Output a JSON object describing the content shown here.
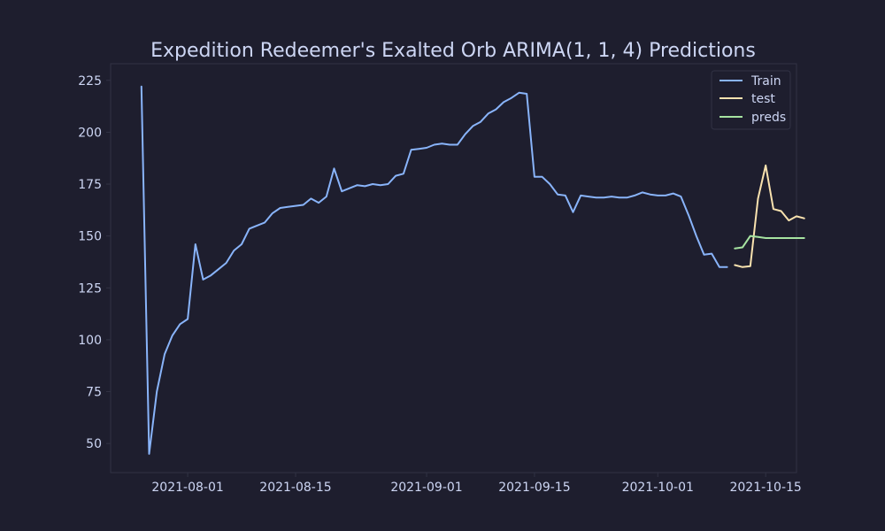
{
  "chart_data": {
    "type": "line",
    "title": "Expedition Redeemer's Exalted Orb ARIMA(1, 1, 4) Predictions",
    "xlabel": "",
    "ylabel": "",
    "x_axis_type": "date",
    "xlim": [
      "2021-07-22",
      "2021-10-19"
    ],
    "ylim": [
      36,
      233
    ],
    "x_ticks": [
      "2021-08-01",
      "2021-08-15",
      "2021-09-01",
      "2021-09-15",
      "2021-10-01",
      "2021-10-15"
    ],
    "y_ticks": [
      50,
      75,
      100,
      125,
      150,
      175,
      200,
      225
    ],
    "grid": false,
    "legend_position": "top-right",
    "series": [
      {
        "name": "Train",
        "color": "#89b4fa",
        "points": [
          [
            "2021-07-26",
            222
          ],
          [
            "2021-07-27",
            45
          ],
          [
            "2021-07-28",
            75
          ],
          [
            "2021-07-29",
            93
          ],
          [
            "2021-07-30",
            102
          ],
          [
            "2021-07-31",
            107.5
          ],
          [
            "2021-08-01",
            110
          ],
          [
            "2021-08-02",
            146
          ],
          [
            "2021-08-03",
            129
          ],
          [
            "2021-08-04",
            131
          ],
          [
            "2021-08-05",
            134
          ],
          [
            "2021-08-06",
            137
          ],
          [
            "2021-08-07",
            143
          ],
          [
            "2021-08-08",
            146
          ],
          [
            "2021-08-09",
            153.5
          ],
          [
            "2021-08-10",
            155
          ],
          [
            "2021-08-11",
            156.5
          ],
          [
            "2021-08-12",
            161
          ],
          [
            "2021-08-13",
            163.5
          ],
          [
            "2021-08-14",
            164
          ],
          [
            "2021-08-15",
            164.5
          ],
          [
            "2021-08-16",
            165
          ],
          [
            "2021-08-17",
            168
          ],
          [
            "2021-08-18",
            166
          ],
          [
            "2021-08-19",
            169
          ],
          [
            "2021-08-20",
            182.5
          ],
          [
            "2021-08-21",
            171.5
          ],
          [
            "2021-08-22",
            173
          ],
          [
            "2021-08-23",
            174.5
          ],
          [
            "2021-08-24",
            174
          ],
          [
            "2021-08-25",
            175
          ],
          [
            "2021-08-26",
            174.5
          ],
          [
            "2021-08-27",
            175
          ],
          [
            "2021-08-28",
            179
          ],
          [
            "2021-08-29",
            180
          ],
          [
            "2021-08-30",
            191.5
          ],
          [
            "2021-08-31",
            192
          ],
          [
            "2021-09-01",
            192.5
          ],
          [
            "2021-09-02",
            194
          ],
          [
            "2021-09-03",
            194.5
          ],
          [
            "2021-09-04",
            194
          ],
          [
            "2021-09-05",
            194
          ],
          [
            "2021-09-06",
            199
          ],
          [
            "2021-09-07",
            203
          ],
          [
            "2021-09-08",
            205
          ],
          [
            "2021-09-09",
            209
          ],
          [
            "2021-09-10",
            211
          ],
          [
            "2021-09-11",
            214.5
          ],
          [
            "2021-09-12",
            216.5
          ],
          [
            "2021-09-13",
            219
          ],
          [
            "2021-09-14",
            218.5
          ],
          [
            "2021-09-15",
            178.5
          ],
          [
            "2021-09-16",
            178.5
          ],
          [
            "2021-09-17",
            175
          ],
          [
            "2021-09-18",
            170
          ],
          [
            "2021-09-19",
            169.5
          ],
          [
            "2021-09-20",
            161.5
          ],
          [
            "2021-09-21",
            169.5
          ],
          [
            "2021-09-22",
            169
          ],
          [
            "2021-09-23",
            168.5
          ],
          [
            "2021-09-24",
            168.5
          ],
          [
            "2021-09-25",
            169
          ],
          [
            "2021-09-26",
            168.5
          ],
          [
            "2021-09-27",
            168.5
          ],
          [
            "2021-09-28",
            169.5
          ],
          [
            "2021-09-29",
            171
          ],
          [
            "2021-09-30",
            170
          ],
          [
            "2021-10-01",
            169.5
          ],
          [
            "2021-10-02",
            169.5
          ],
          [
            "2021-10-03",
            170.5
          ],
          [
            "2021-10-04",
            169
          ],
          [
            "2021-10-05",
            160
          ],
          [
            "2021-10-06",
            150
          ],
          [
            "2021-10-07",
            141
          ],
          [
            "2021-10-08",
            141.5
          ],
          [
            "2021-10-09",
            135
          ],
          [
            "2021-10-10",
            135
          ]
        ]
      },
      {
        "name": "test",
        "color": "#f9e2af",
        "points": [
          [
            "2021-10-11",
            136
          ],
          [
            "2021-10-12",
            135
          ],
          [
            "2021-10-13",
            135.5
          ],
          [
            "2021-10-14",
            168
          ],
          [
            "2021-10-15",
            184
          ],
          [
            "2021-10-16",
            163
          ],
          [
            "2021-10-17",
            162
          ],
          [
            "2021-10-18",
            157.5
          ],
          [
            "2021-10-19",
            159.5
          ],
          [
            "2021-10-20",
            158.5
          ]
        ]
      },
      {
        "name": "preds",
        "color": "#a6e3a1",
        "points": [
          [
            "2021-10-11",
            144
          ],
          [
            "2021-10-12",
            144.5
          ],
          [
            "2021-10-13",
            150
          ],
          [
            "2021-10-14",
            149.5
          ],
          [
            "2021-10-15",
            149
          ],
          [
            "2021-10-16",
            149
          ],
          [
            "2021-10-17",
            149
          ],
          [
            "2021-10-18",
            149
          ],
          [
            "2021-10-19",
            149
          ],
          [
            "2021-10-20",
            149
          ]
        ]
      }
    ]
  },
  "theme": {
    "background": "#1e1e2e",
    "text": "#cdd6f4",
    "axis": "#313244"
  }
}
